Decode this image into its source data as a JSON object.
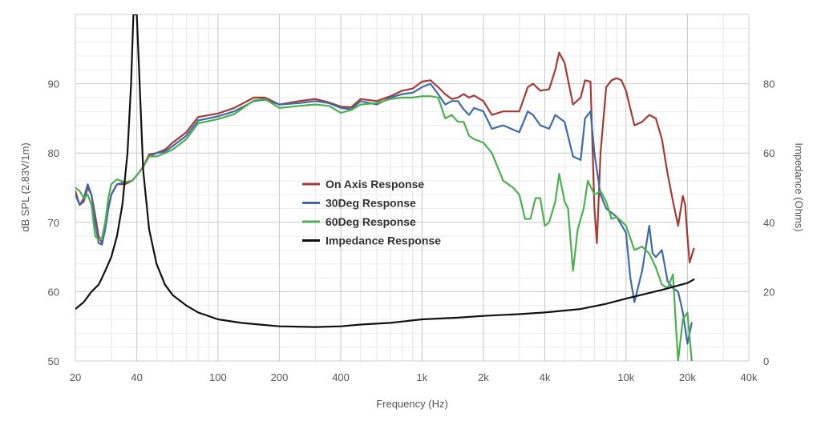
{
  "chart_data": {
    "type": "line",
    "xlabel": "Frequency (Hz)",
    "ylabel": "dB SPL (2.83V/1m)",
    "y2label": "Impedance (Ohms)",
    "x_scale": "log",
    "xlim": [
      20,
      40000
    ],
    "ylim": [
      50,
      100
    ],
    "y2lim": [
      0,
      100
    ],
    "grid": true,
    "legend_position": "center",
    "x_ticks": [
      {
        "value": 20,
        "label": "20"
      },
      {
        "value": 40,
        "label": "40"
      },
      {
        "value": 100,
        "label": "100"
      },
      {
        "value": 200,
        "label": "200"
      },
      {
        "value": 400,
        "label": "400"
      },
      {
        "value": 1000,
        "label": "1k"
      },
      {
        "value": 2000,
        "label": "2k"
      },
      {
        "value": 4000,
        "label": "4k"
      },
      {
        "value": 10000,
        "label": "10k"
      },
      {
        "value": 20000,
        "label": "20k"
      },
      {
        "value": 40000,
        "label": "40k"
      }
    ],
    "y_ticks": [
      {
        "value": 50,
        "label": "50"
      },
      {
        "value": 60,
        "label": "60"
      },
      {
        "value": 70,
        "label": "70"
      },
      {
        "value": 80,
        "label": "80"
      },
      {
        "value": 90,
        "label": "90"
      }
    ],
    "y2_ticks": [
      {
        "value": 0,
        "label": "0"
      },
      {
        "value": 20,
        "label": "20"
      },
      {
        "value": 40,
        "label": "40"
      },
      {
        "value": 60,
        "label": "60"
      },
      {
        "value": 80,
        "label": "80"
      }
    ],
    "series": [
      {
        "name": "On Axis Response",
        "color": "#a33b35",
        "axis": "left",
        "points": [
          [
            20,
            74.5
          ],
          [
            21,
            72.5
          ],
          [
            22,
            73
          ],
          [
            23,
            75
          ],
          [
            24,
            74
          ],
          [
            25,
            71
          ],
          [
            26,
            68
          ],
          [
            27,
            67
          ],
          [
            28,
            69
          ],
          [
            29,
            72
          ],
          [
            30,
            74
          ],
          [
            32,
            75.5
          ],
          [
            35,
            75.5
          ],
          [
            38,
            76
          ],
          [
            40,
            76.8
          ],
          [
            43,
            78
          ],
          [
            46,
            79.8
          ],
          [
            50,
            80
          ],
          [
            55,
            80.5
          ],
          [
            60,
            81.5
          ],
          [
            70,
            83
          ],
          [
            80,
            85.2
          ],
          [
            100,
            85.7
          ],
          [
            120,
            86.5
          ],
          [
            150,
            88
          ],
          [
            170,
            88
          ],
          [
            200,
            87
          ],
          [
            250,
            87.5
          ],
          [
            300,
            87.8
          ],
          [
            350,
            87.3
          ],
          [
            400,
            86.7
          ],
          [
            450,
            86.6
          ],
          [
            500,
            87.8
          ],
          [
            600,
            87.5
          ],
          [
            700,
            88.2
          ],
          [
            800,
            89
          ],
          [
            900,
            89.3
          ],
          [
            1000,
            90.3
          ],
          [
            1100,
            90.5
          ],
          [
            1200,
            89.5
          ],
          [
            1300,
            88.5
          ],
          [
            1400,
            87.8
          ],
          [
            1500,
            88
          ],
          [
            1600,
            88.5
          ],
          [
            1700,
            88
          ],
          [
            1800,
            88.3
          ],
          [
            2000,
            87.5
          ],
          [
            2200,
            85.5
          ],
          [
            2500,
            86
          ],
          [
            3000,
            86
          ],
          [
            3300,
            89.5
          ],
          [
            3500,
            90
          ],
          [
            3800,
            89
          ],
          [
            4200,
            89.2
          ],
          [
            4500,
            92
          ],
          [
            4700,
            94.5
          ],
          [
            5000,
            93
          ],
          [
            5500,
            87
          ],
          [
            6000,
            88
          ],
          [
            6300,
            90.5
          ],
          [
            6700,
            90.3
          ],
          [
            7000,
            72
          ],
          [
            7200,
            67
          ],
          [
            7500,
            80
          ],
          [
            8000,
            89.5
          ],
          [
            8500,
            90.5
          ],
          [
            9000,
            90.8
          ],
          [
            9500,
            90.5
          ],
          [
            10000,
            89
          ],
          [
            11000,
            84
          ],
          [
            12000,
            84.5
          ],
          [
            13000,
            85.5
          ],
          [
            14000,
            85
          ],
          [
            15000,
            82
          ],
          [
            16000,
            77
          ],
          [
            17000,
            73
          ],
          [
            18000,
            69.5
          ],
          [
            19000,
            73.8
          ],
          [
            19500,
            72.5
          ],
          [
            20000,
            68
          ],
          [
            20500,
            64.2
          ],
          [
            21500,
            66.2
          ]
        ]
      },
      {
        "name": "30Deg Response",
        "color": "#3e6ba8",
        "axis": "left",
        "points": [
          [
            20,
            74
          ],
          [
            21,
            72.5
          ],
          [
            22,
            73.5
          ],
          [
            23,
            75.5
          ],
          [
            24,
            74
          ],
          [
            25,
            70
          ],
          [
            26,
            67
          ],
          [
            27,
            66.8
          ],
          [
            28,
            69
          ],
          [
            29,
            72
          ],
          [
            30,
            74
          ],
          [
            32,
            75.5
          ],
          [
            35,
            75.8
          ],
          [
            38,
            76
          ],
          [
            40,
            76.8
          ],
          [
            43,
            78
          ],
          [
            46,
            79.5
          ],
          [
            50,
            80
          ],
          [
            55,
            80.2
          ],
          [
            60,
            81
          ],
          [
            70,
            82.5
          ],
          [
            80,
            84.7
          ],
          [
            100,
            85.3
          ],
          [
            120,
            86
          ],
          [
            150,
            87.5
          ],
          [
            170,
            87.7
          ],
          [
            200,
            87
          ],
          [
            250,
            87.2
          ],
          [
            300,
            87.5
          ],
          [
            350,
            87.2
          ],
          [
            400,
            86.5
          ],
          [
            450,
            86.3
          ],
          [
            500,
            87.5
          ],
          [
            600,
            87
          ],
          [
            700,
            88
          ],
          [
            800,
            88.5
          ],
          [
            900,
            88.7
          ],
          [
            1000,
            89.5
          ],
          [
            1100,
            90
          ],
          [
            1200,
            88.5
          ],
          [
            1300,
            87
          ],
          [
            1400,
            87.5
          ],
          [
            1500,
            87.5
          ],
          [
            1600,
            86.3
          ],
          [
            1700,
            85.5
          ],
          [
            1800,
            86.5
          ],
          [
            2000,
            86
          ],
          [
            2200,
            83.5
          ],
          [
            2500,
            84
          ],
          [
            3000,
            83
          ],
          [
            3300,
            86
          ],
          [
            3500,
            85.5
          ],
          [
            3800,
            84
          ],
          [
            4200,
            83.5
          ],
          [
            4500,
            85.5
          ],
          [
            5000,
            84.5
          ],
          [
            5500,
            79.5
          ],
          [
            6000,
            79
          ],
          [
            6300,
            85
          ],
          [
            6700,
            86
          ],
          [
            7000,
            80
          ],
          [
            7500,
            74
          ],
          [
            8000,
            72
          ],
          [
            9000,
            70.8
          ],
          [
            10000,
            68.5
          ],
          [
            10500,
            62
          ],
          [
            11000,
            58.5
          ],
          [
            12000,
            63
          ],
          [
            13000,
            69.5
          ],
          [
            13500,
            65.5
          ],
          [
            14000,
            65
          ],
          [
            15000,
            66
          ],
          [
            16000,
            61.5
          ],
          [
            17000,
            60.5
          ],
          [
            18000,
            60
          ],
          [
            19000,
            57
          ],
          [
            20000,
            52.5
          ],
          [
            21000,
            55.5
          ]
        ]
      },
      {
        "name": "60Deg Response",
        "color": "#4caf50",
        "axis": "left",
        "points": [
          [
            20,
            75
          ],
          [
            21,
            74.5
          ],
          [
            22,
            73.5
          ],
          [
            23,
            74
          ],
          [
            24,
            72.5
          ],
          [
            25,
            68
          ],
          [
            26,
            67.5
          ],
          [
            27,
            67.8
          ],
          [
            28,
            70
          ],
          [
            29,
            73.5
          ],
          [
            30,
            75.5
          ],
          [
            32,
            76.2
          ],
          [
            35,
            75.8
          ],
          [
            38,
            76
          ],
          [
            40,
            76.8
          ],
          [
            43,
            78
          ],
          [
            46,
            79.5
          ],
          [
            50,
            79.5
          ],
          [
            55,
            80
          ],
          [
            60,
            80.5
          ],
          [
            70,
            82
          ],
          [
            80,
            84.3
          ],
          [
            100,
            84.9
          ],
          [
            120,
            85.6
          ],
          [
            150,
            87.6
          ],
          [
            170,
            87.8
          ],
          [
            200,
            86.5
          ],
          [
            250,
            86.8
          ],
          [
            300,
            87
          ],
          [
            350,
            86.8
          ],
          [
            400,
            85.8
          ],
          [
            450,
            86.2
          ],
          [
            500,
            87
          ],
          [
            600,
            87.2
          ],
          [
            700,
            87.8
          ],
          [
            800,
            88
          ],
          [
            900,
            88
          ],
          [
            1000,
            88.2
          ],
          [
            1100,
            88.2
          ],
          [
            1200,
            88
          ],
          [
            1300,
            85
          ],
          [
            1400,
            85.5
          ],
          [
            1500,
            84.5
          ],
          [
            1600,
            84.5
          ],
          [
            1700,
            82.5
          ],
          [
            1800,
            82
          ],
          [
            2000,
            81.5
          ],
          [
            2200,
            80
          ],
          [
            2500,
            76
          ],
          [
            2800,
            75
          ],
          [
            3000,
            74
          ],
          [
            3200,
            70.5
          ],
          [
            3400,
            70.5
          ],
          [
            3600,
            73.5
          ],
          [
            3800,
            73.5
          ],
          [
            4000,
            69.5
          ],
          [
            4200,
            70
          ],
          [
            4500,
            73
          ],
          [
            4700,
            77
          ],
          [
            5000,
            73
          ],
          [
            5200,
            72
          ],
          [
            5500,
            63
          ],
          [
            5800,
            69
          ],
          [
            6200,
            72
          ],
          [
            6500,
            76
          ],
          [
            7000,
            74
          ],
          [
            7500,
            74.5
          ],
          [
            8000,
            73
          ],
          [
            8500,
            70.5
          ],
          [
            9000,
            70.8
          ],
          [
            10000,
            69.5
          ],
          [
            11000,
            66
          ],
          [
            12000,
            66.5
          ],
          [
            13000,
            65.5
          ],
          [
            14000,
            63.5
          ],
          [
            15000,
            61
          ],
          [
            16000,
            60.5
          ],
          [
            17000,
            62.5
          ],
          [
            17500,
            56
          ],
          [
            18000,
            50
          ],
          [
            19000,
            56
          ],
          [
            20000,
            57
          ],
          [
            21000,
            50
          ]
        ]
      },
      {
        "name": "Impedance Response",
        "color": "#111111",
        "axis": "right",
        "points": [
          [
            20,
            15
          ],
          [
            22,
            17
          ],
          [
            24,
            20
          ],
          [
            26,
            22
          ],
          [
            27,
            24
          ],
          [
            28,
            26
          ],
          [
            30,
            30
          ],
          [
            32,
            36
          ],
          [
            34,
            45
          ],
          [
            36,
            60
          ],
          [
            37.5,
            80
          ],
          [
            38.5,
            100
          ],
          [
            40,
            100
          ],
          [
            41,
            85
          ],
          [
            43,
            55
          ],
          [
            46,
            38
          ],
          [
            50,
            28
          ],
          [
            55,
            22
          ],
          [
            60,
            19
          ],
          [
            70,
            16
          ],
          [
            80,
            14
          ],
          [
            100,
            12
          ],
          [
            130,
            11
          ],
          [
            160,
            10.5
          ],
          [
            200,
            10
          ],
          [
            300,
            9.8
          ],
          [
            400,
            10
          ],
          [
            500,
            10.5
          ],
          [
            700,
            11
          ],
          [
            1000,
            12
          ],
          [
            1500,
            12.5
          ],
          [
            2000,
            13
          ],
          [
            3000,
            13.5
          ],
          [
            4000,
            14
          ],
          [
            6000,
            15
          ],
          [
            8000,
            16.5
          ],
          [
            10000,
            18
          ],
          [
            15000,
            20.5
          ],
          [
            20000,
            22.5
          ],
          [
            21500,
            23.5
          ]
        ]
      }
    ]
  }
}
